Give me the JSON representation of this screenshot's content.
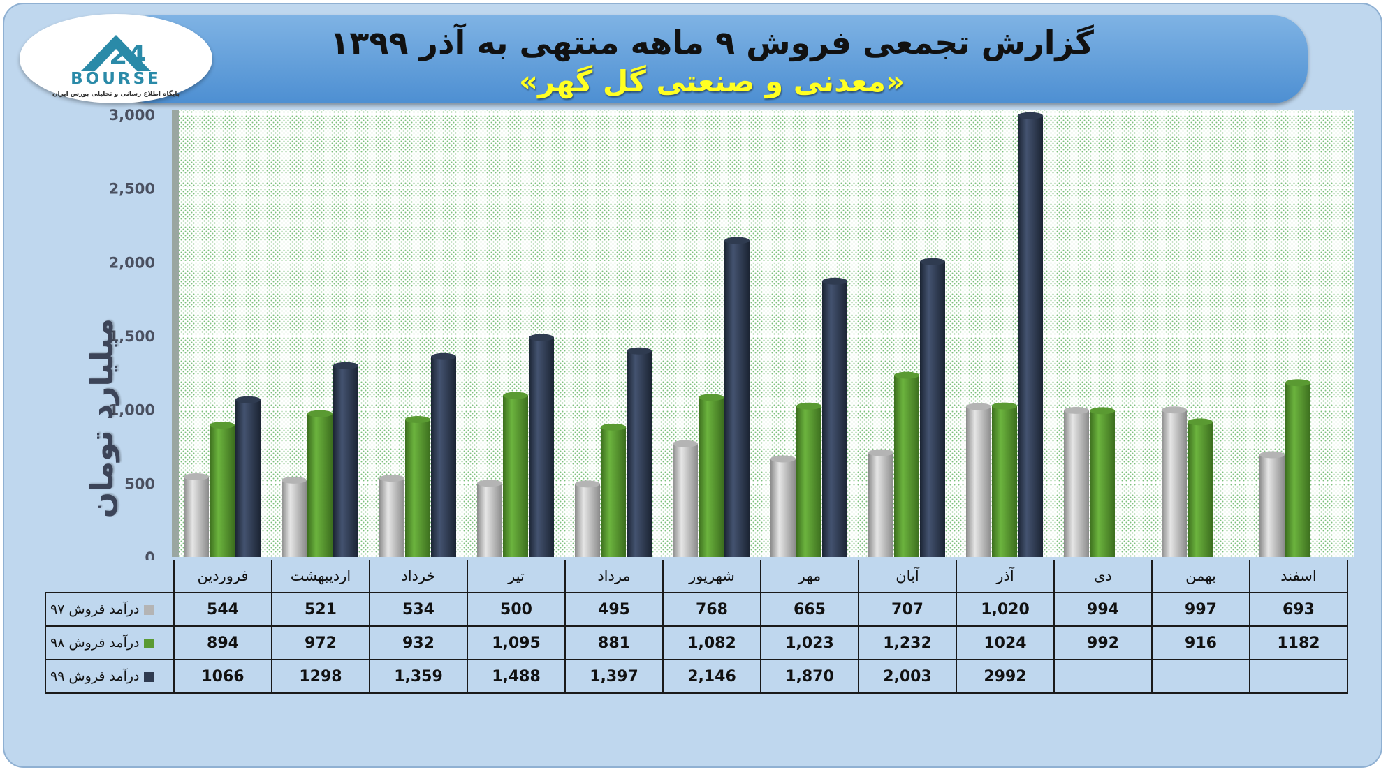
{
  "header": {
    "title": "گزارش تجمعی فروش ۹ ماهه منتهی به آذر ۱۳۹۹",
    "subtitle": "«معدنی و صنعتی گل گهر»",
    "logo_text": "BOURSE",
    "logo_caption": "پایگاه اطلاع رسانی و تحلیلی بورس ایران"
  },
  "chart_data": {
    "type": "bar",
    "title": "گزارش تجمعی فروش ۹ ماهه منتهی به آذر ۱۳۹۹",
    "subtitle": "«معدنی و صنعتی گل گهر»",
    "ylabel": "میلیارد تومان",
    "xlabel": "",
    "ylim": [
      0,
      3000
    ],
    "yticks": [
      0,
      500,
      1000,
      1500,
      2000,
      2500,
      3000
    ],
    "ytick_labels": [
      "0",
      "500",
      "1,000",
      "1,500",
      "2,000",
      "2,500",
      "3,000"
    ],
    "grid": true,
    "legend": "table-bottom",
    "categories": [
      "فروردین",
      "اردیبهشت",
      "خرداد",
      "تیر",
      "مرداد",
      "شهریور",
      "مهر",
      "آبان",
      "آذر",
      "دی",
      "بهمن",
      "اسفند"
    ],
    "series": [
      {
        "name": "درآمد فروش ۹۷",
        "color": "#b4b4b4",
        "values": [
          544,
          521,
          534,
          500,
          495,
          768,
          665,
          707,
          1020,
          994,
          997,
          693
        ],
        "labels": [
          "544",
          "521",
          "534",
          "500",
          "495",
          "768",
          "665",
          "707",
          "1,020",
          "994",
          "997",
          "693"
        ]
      },
      {
        "name": "درآمد فروش ۹۸",
        "color": "#5a9a32",
        "values": [
          894,
          972,
          932,
          1095,
          881,
          1082,
          1023,
          1232,
          1024,
          992,
          916,
          1182
        ],
        "labels": [
          "894",
          "972",
          "932",
          "1,095",
          "881",
          "1,082",
          "1,023",
          "1,232",
          "1024",
          "992",
          "916",
          "1182"
        ]
      },
      {
        "name": "درآمد فروش ۹۹",
        "color": "#2f3b50",
        "values": [
          1066,
          1298,
          1359,
          1488,
          1397,
          2146,
          1870,
          2003,
          2992,
          null,
          null,
          null
        ],
        "labels": [
          "1066",
          "1298",
          "1,359",
          "1,488",
          "1,397",
          "2,146",
          "1,870",
          "2,003",
          "2992",
          "",
          "",
          ""
        ]
      }
    ]
  }
}
